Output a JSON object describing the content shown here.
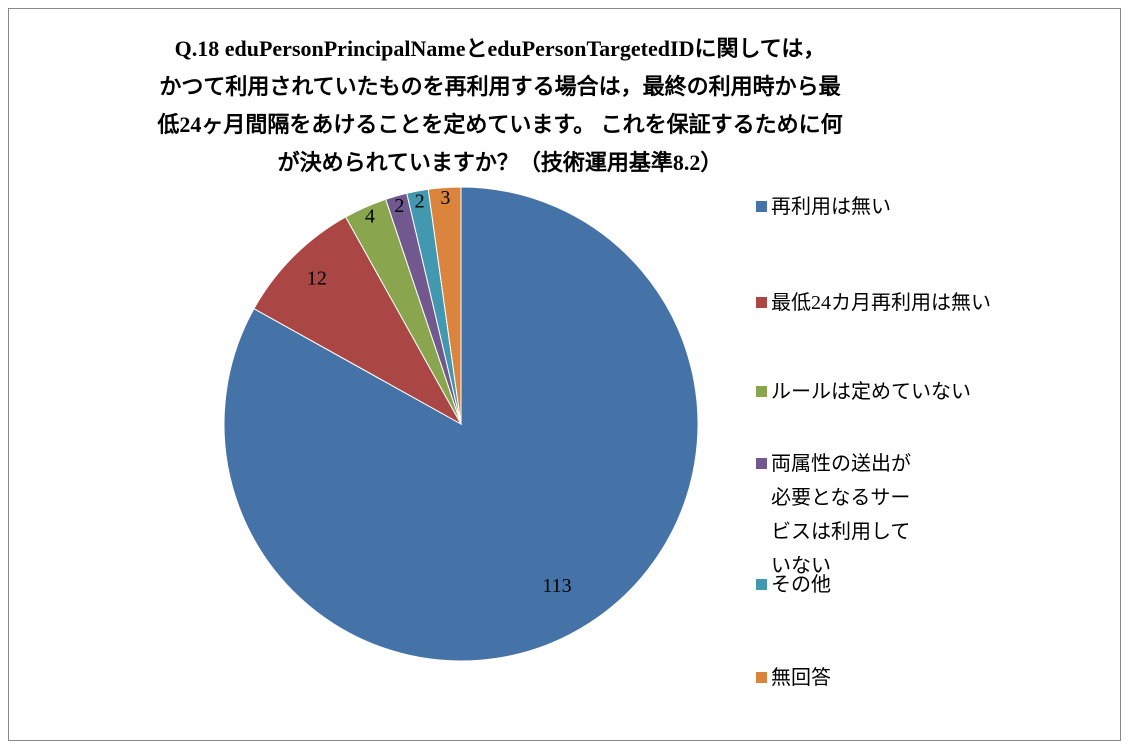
{
  "chart_data": {
    "type": "pie",
    "title": "Q.18 eduPersonPrincipalNameとeduPersonTargetedIDに関しては，\nかつて利用されていたものを再利用する場合は，最終の利用時から最\n低24ヶ月間隔をあけることを定めています。 これを保証するために何\nが決められていますか？（技術運用基準8.2）",
    "categories": [
      "再利用は無い",
      "最低24カ月再利用は無い",
      "ルールは定めていない",
      "両属性の送出が必要となるサービスは利用していない",
      "その他",
      "無回答"
    ],
    "values": [
      113,
      12,
      4,
      2,
      2,
      3
    ],
    "colors": [
      "#4572a7",
      "#aa4643",
      "#89a54e",
      "#71588f",
      "#4198af",
      "#db843d"
    ],
    "legend": "right"
  }
}
